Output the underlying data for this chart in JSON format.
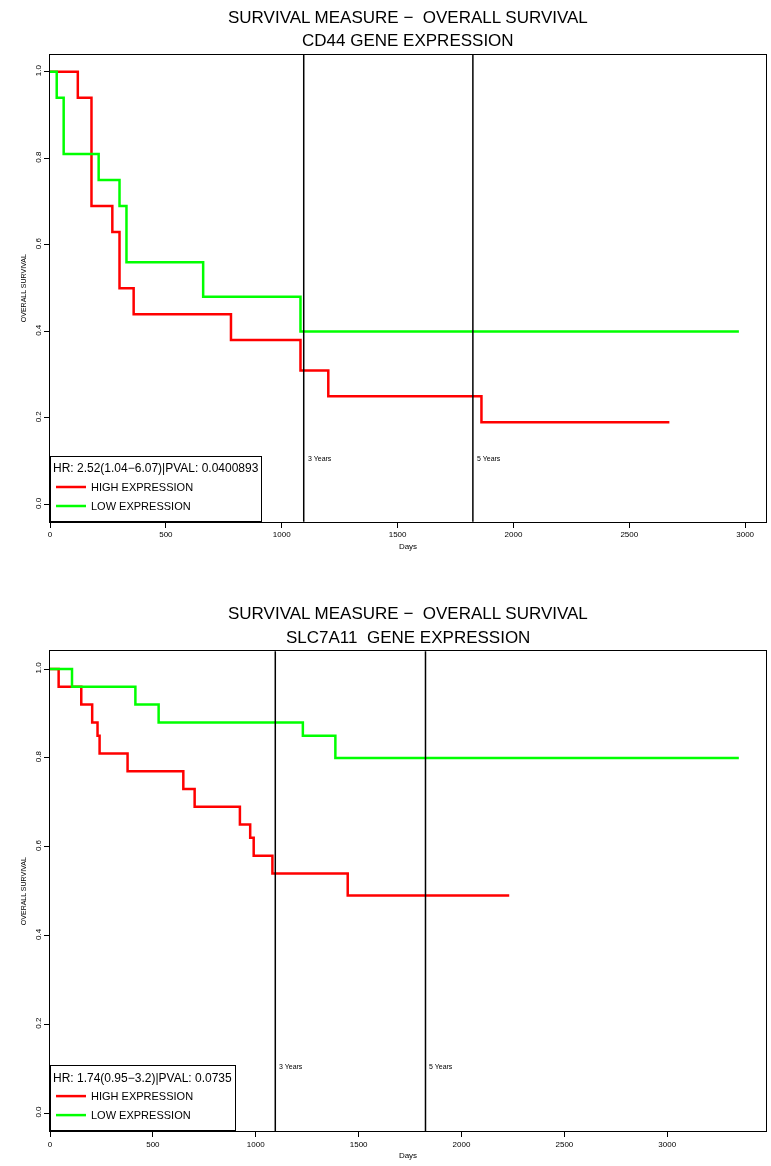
{
  "chart_data": [
    {
      "type": "step",
      "title": "SURVIVAL MEASURE −  OVERALL SURVIVAL",
      "subtitle": "CD44 GENE EXPRESSION",
      "xlabel": "Days",
      "ylabel": "OVERALL SURVIVAL",
      "legend_title": "HR: 2.52(1.04−6.07)|PVAL: 0.0400893",
      "legend": "bottom left",
      "xlim": [
        0,
        3090
      ],
      "xticks": [
        0,
        500,
        1000,
        1500,
        2000,
        2500,
        3000
      ],
      "ylim": [
        -0.04,
        1.04
      ],
      "yticks": [
        {
          "value": 0,
          "label": "0.0"
        },
        {
          "value": 0.2,
          "label": "0.2"
        },
        {
          "value": 0.4,
          "label": "0.4"
        },
        {
          "value": 0.6,
          "label": "0.6"
        },
        {
          "value": 0.8,
          "label": "0.8"
        },
        {
          "value": 1,
          "label": "1.0"
        }
      ],
      "series": [
        {
          "name": "HIGH EXPRESSION",
          "color": "#ff0000",
          "x": [
            0,
            120,
            179,
            269,
            300,
            361,
            781,
            1081,
            1201,
            1862,
            2673
          ],
          "values": [
            1,
            0.94,
            0.69,
            0.63,
            0.5,
            0.44,
            0.38,
            0.31,
            0.25,
            0.19,
            0.19
          ]
        },
        {
          "name": "LOW EXPRESSION",
          "color": "#00ff00",
          "x": [
            0,
            29,
            59,
            210,
            300,
            330,
            661,
            1081,
            2973
          ],
          "values": [
            1,
            0.94,
            0.81,
            0.75,
            0.69,
            0.56,
            0.48,
            0.4,
            0.4
          ]
        }
      ],
      "ref_lines": [
        {
          "axis": "x",
          "value": 1095,
          "label": "3 Years",
          "color": "#000000"
        },
        {
          "axis": "x",
          "value": 1825,
          "label": "5 Years",
          "color": "#000000"
        }
      ]
    },
    {
      "type": "step",
      "title": "SURVIVAL MEASURE −  OVERALL SURVIVAL",
      "subtitle": "SLC7A11  GENE EXPRESSION",
      "xlabel": "Days",
      "ylabel": "OVERALL SURVIVAL",
      "legend_title": "HR: 1.74(0.95−3.2)|PVAL: 0.0735",
      "legend": "bottom left",
      "xlim": [
        0,
        3480
      ],
      "xticks": [
        0,
        500,
        1000,
        1500,
        2000,
        2500,
        3000
      ],
      "ylim": [
        -0.04,
        1.04
      ],
      "yticks": [
        {
          "value": 0,
          "label": "0.0"
        },
        {
          "value": 0.2,
          "label": "0.2"
        },
        {
          "value": 0.4,
          "label": "0.4"
        },
        {
          "value": 0.6,
          "label": "0.6"
        },
        {
          "value": 0.8,
          "label": "0.8"
        },
        {
          "value": 1,
          "label": "1.0"
        }
      ],
      "series": [
        {
          "name": "HIGH EXPRESSION",
          "color": "#ff0000",
          "x": [
            0,
            42,
            152,
            205,
            231,
            241,
            377,
            648,
            703,
            923,
            973,
            990,
            1081,
            1447,
            2232
          ],
          "values": [
            1,
            0.96,
            0.92,
            0.88,
            0.85,
            0.81,
            0.77,
            0.73,
            0.69,
            0.65,
            0.62,
            0.58,
            0.54,
            0.49,
            0.49
          ]
        },
        {
          "name": "LOW EXPRESSION",
          "color": "#00ff00",
          "x": [
            0,
            107,
            415,
            528,
            1229,
            1387,
            3348
          ],
          "values": [
            1,
            0.96,
            0.92,
            0.88,
            0.85,
            0.8,
            0.8
          ]
        }
      ],
      "ref_lines": [
        {
          "axis": "x",
          "value": 1095,
          "label": "3 Years",
          "color": "#000000"
        },
        {
          "axis": "x",
          "value": 1825,
          "label": "5 Years",
          "color": "#000000"
        }
      ]
    }
  ]
}
